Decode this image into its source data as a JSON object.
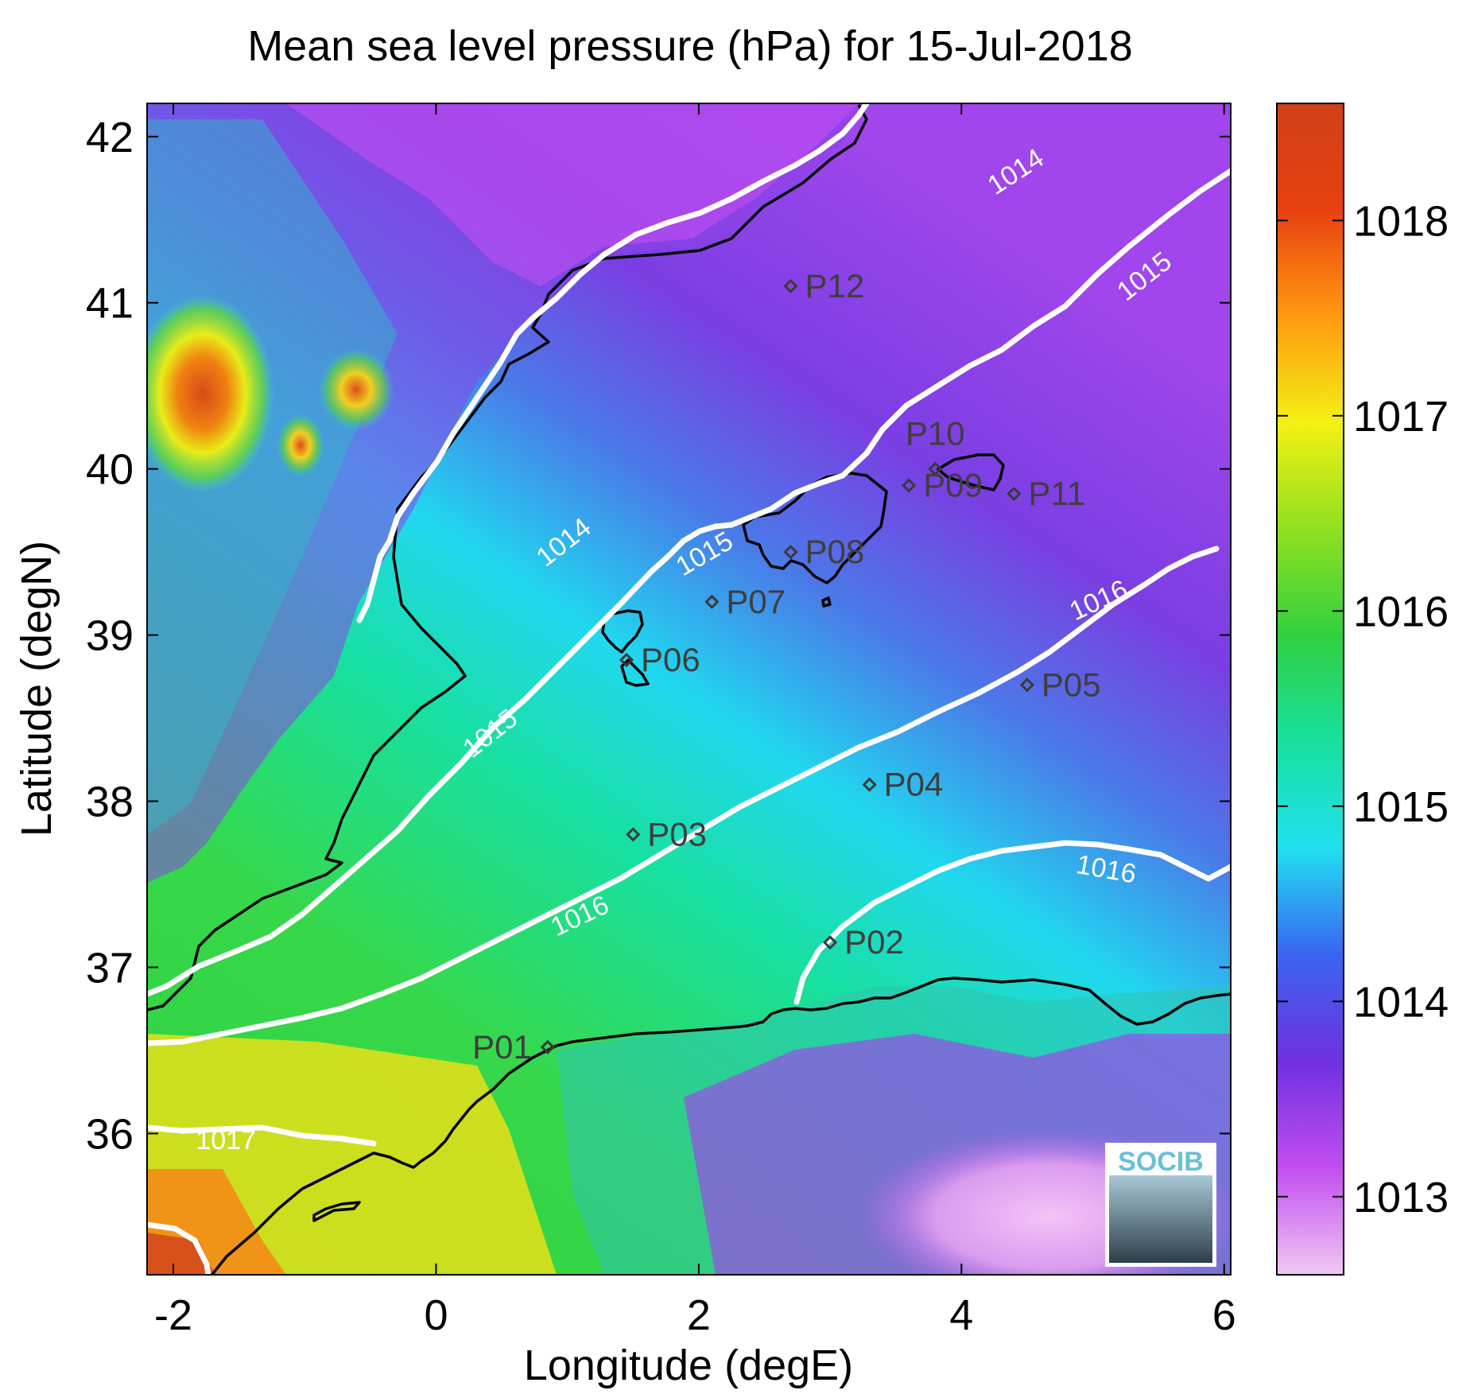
{
  "title": "Mean sea level pressure (hPa) for 15-Jul-2018",
  "xlabel": "Longitude (degE)",
  "ylabel": "Latitude (degN)",
  "x_ticks": [
    "-2",
    "0",
    "2",
    "4",
    "6"
  ],
  "y_ticks": [
    "36",
    "37",
    "38",
    "39",
    "40",
    "41",
    "42"
  ],
  "colorbar": {
    "ticks": [
      "1013",
      "1014",
      "1015",
      "1016",
      "1017",
      "1018"
    ],
    "range": [
      1012.6,
      1018.6
    ],
    "colors": [
      "#f2c8f4",
      "#c24ef0",
      "#7030e0",
      "#3a64f0",
      "#20e0f0",
      "#18e0a0",
      "#30d040",
      "#90e020",
      "#f4f014",
      "#ff9a10",
      "#e84010",
      "#d04018"
    ]
  },
  "chart_data": {
    "type": "heatmap",
    "variable": "Mean sea level pressure (hPa)",
    "date": "15-Jul-2018",
    "xlim": [
      -2.2,
      6.05
    ],
    "ylim": [
      35.15,
      42.2
    ],
    "contour_labels": [
      {
        "text": "1014",
        "lon": 4.42,
        "lat": 41.78,
        "angle": -33
      },
      {
        "text": "1014",
        "lon": 0.98,
        "lat": 39.55,
        "angle": -38
      },
      {
        "text": "1015",
        "lon": 5.4,
        "lat": 41.15,
        "angle": -38
      },
      {
        "text": "1015",
        "lon": 2.05,
        "lat": 39.48,
        "angle": -30
      },
      {
        "text": "1015",
        "lon": 0.42,
        "lat": 38.4,
        "angle": -38
      },
      {
        "text": "1016",
        "lon": 5.05,
        "lat": 39.2,
        "angle": -25
      },
      {
        "text": "1016",
        "lon": 1.1,
        "lat": 37.3,
        "angle": -25
      },
      {
        "text": "1016",
        "lon": 5.1,
        "lat": 37.58,
        "angle": 10
      },
      {
        "text": "1017",
        "lon": -1.6,
        "lat": 35.95,
        "angle": 0
      }
    ],
    "stations": [
      {
        "name": "P01",
        "lon": 0.85,
        "lat": 36.52
      },
      {
        "name": "P02",
        "lon": 3.0,
        "lat": 37.15
      },
      {
        "name": "P03",
        "lon": 1.5,
        "lat": 37.8
      },
      {
        "name": "P04",
        "lon": 3.3,
        "lat": 38.1
      },
      {
        "name": "P05",
        "lon": 4.5,
        "lat": 38.7
      },
      {
        "name": "P06",
        "lon": 1.45,
        "lat": 38.85
      },
      {
        "name": "P07",
        "lon": 2.1,
        "lat": 39.2
      },
      {
        "name": "P08",
        "lon": 2.7,
        "lat": 39.5
      },
      {
        "name": "P09",
        "lon": 3.6,
        "lat": 39.9
      },
      {
        "name": "P10",
        "lon": 3.8,
        "lat": 40.0
      },
      {
        "name": "P11",
        "lon": 4.4,
        "lat": 39.85
      },
      {
        "name": "P12",
        "lon": 2.7,
        "lat": 41.1
      }
    ]
  },
  "logo_text": "SOCIB"
}
